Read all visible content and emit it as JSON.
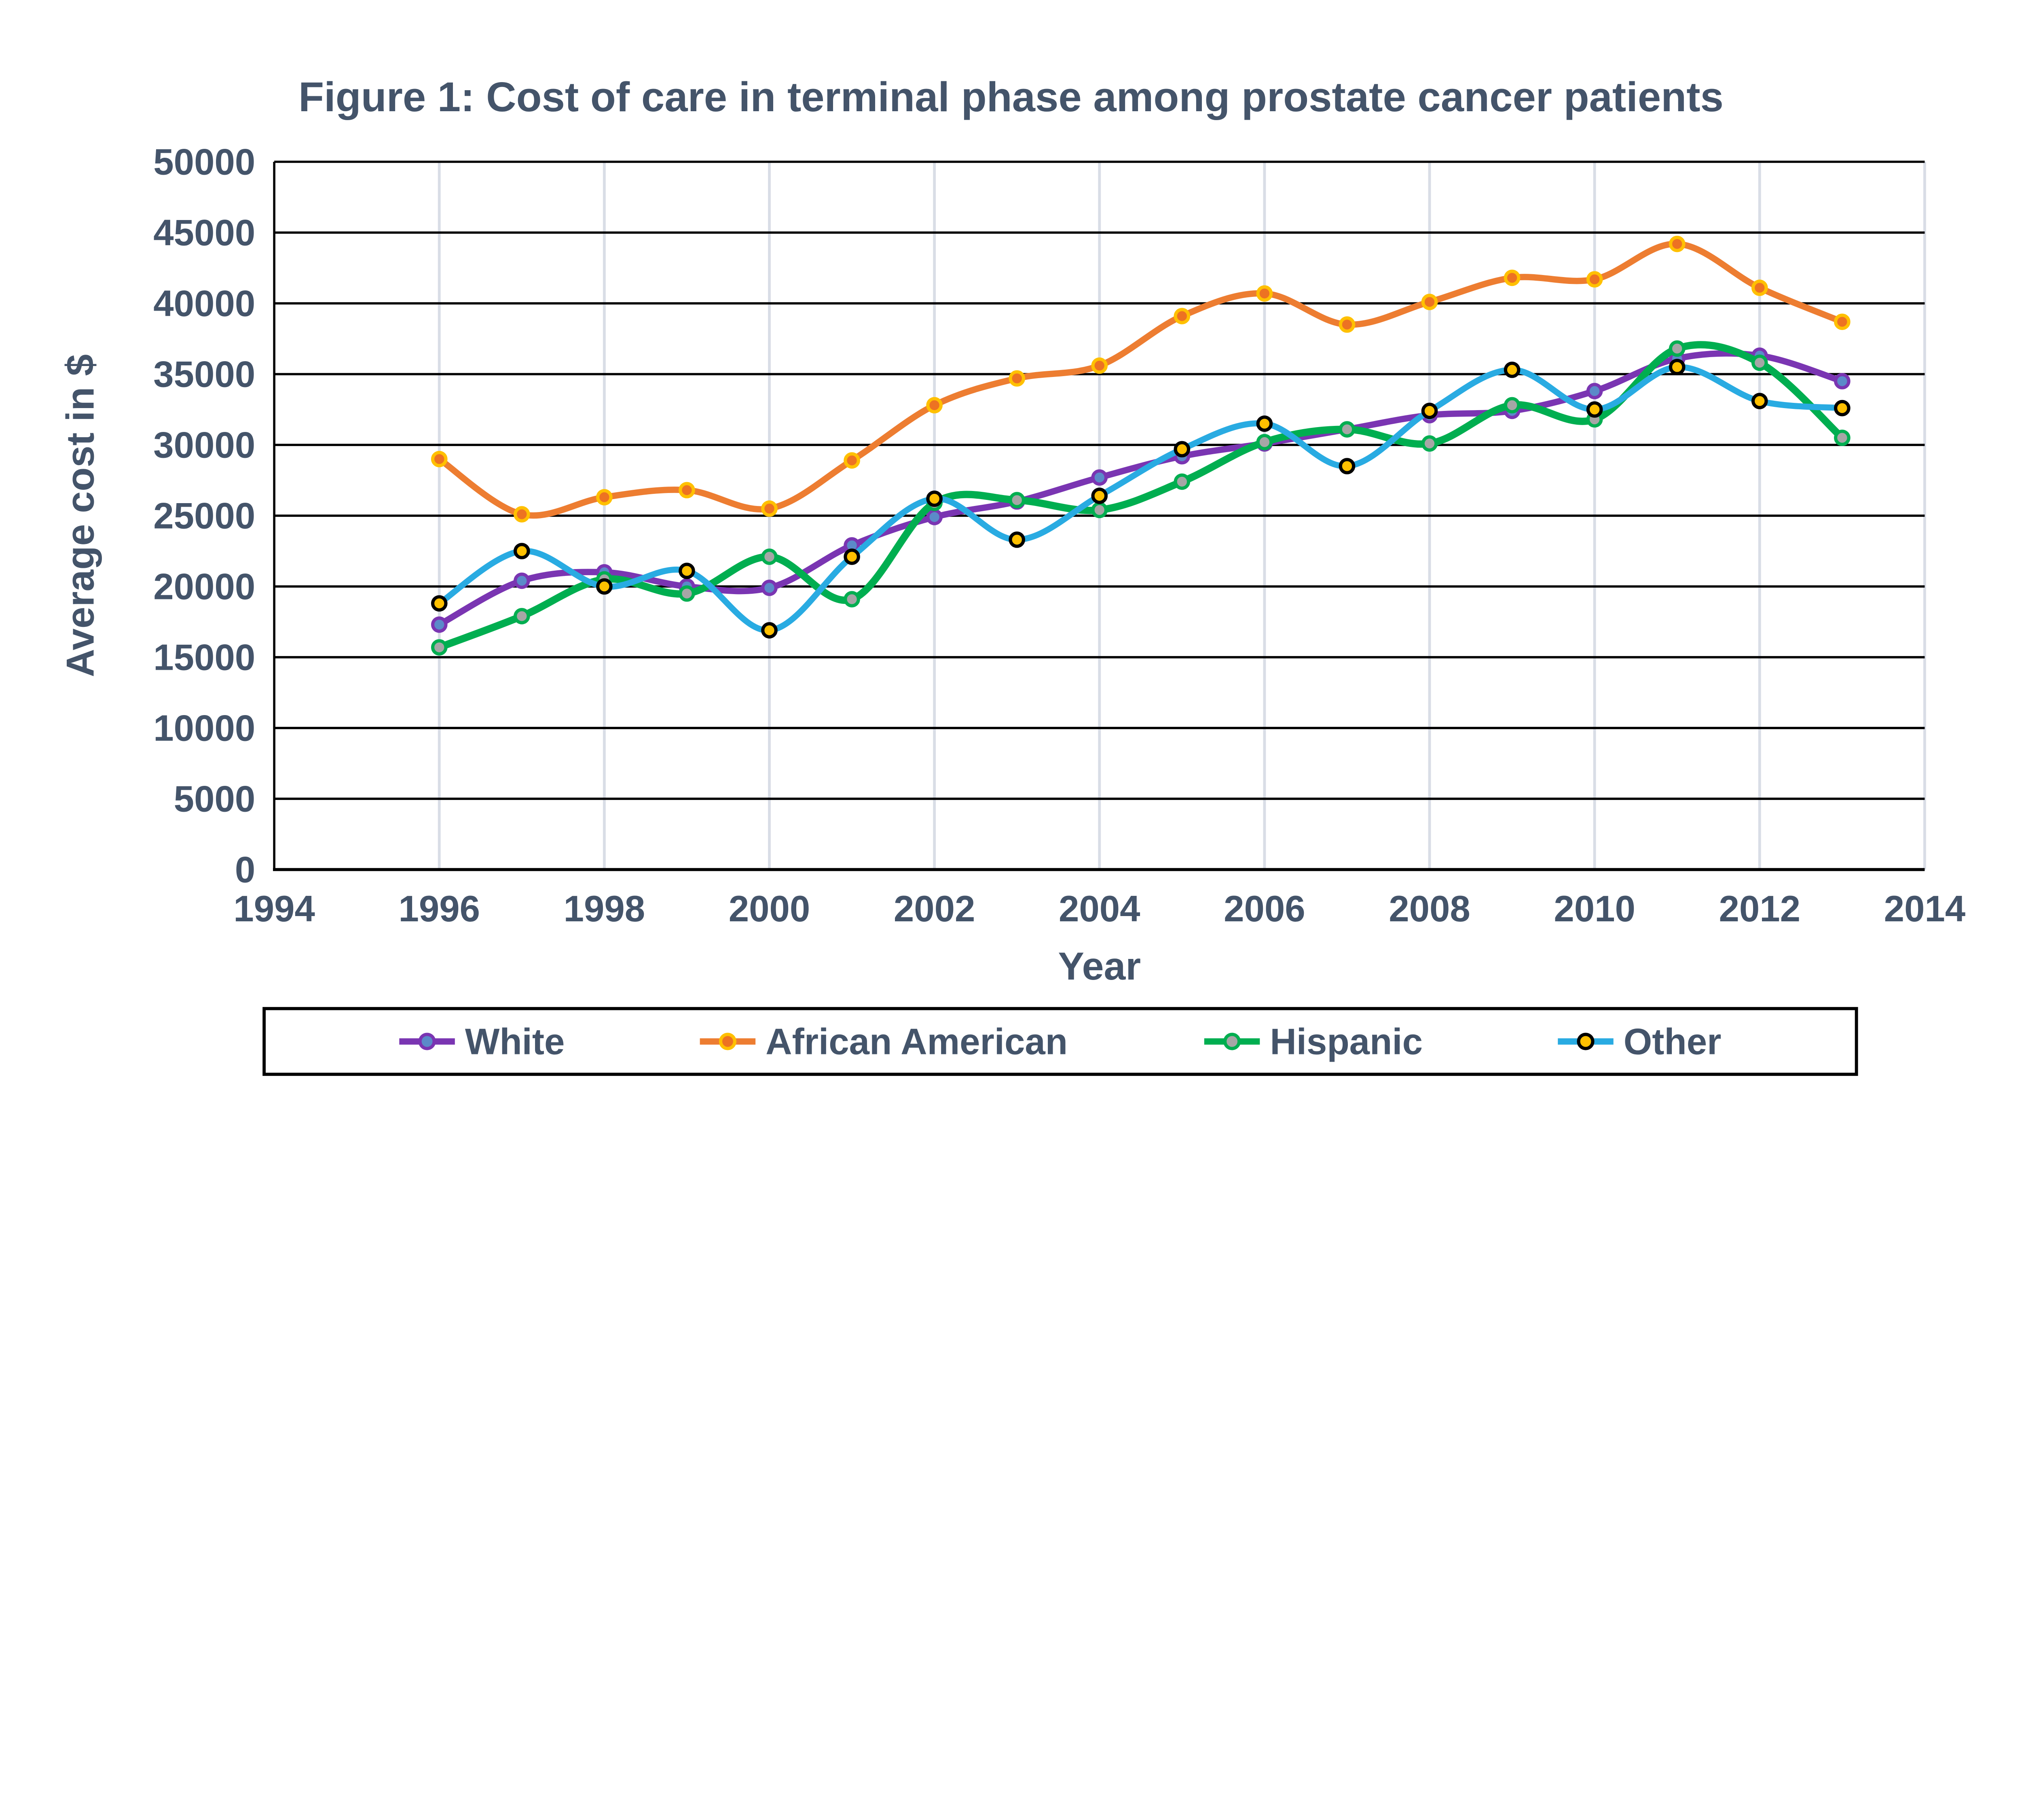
{
  "figure": {
    "background_color": "#FFFFFF",
    "text_color": "#44546A"
  },
  "chart_data": {
    "type": "line",
    "title": "Figure 1: Cost of care in terminal phase among prostate cancer patients",
    "xlabel": "Year",
    "ylabel": "Average cost in $",
    "x": [
      1996,
      1997,
      1998,
      1999,
      2000,
      2001,
      2002,
      2003,
      2004,
      2005,
      2006,
      2007,
      2008,
      2009,
      2010,
      2011,
      2012,
      2013
    ],
    "series": [
      {
        "name": "White",
        "line_color": "#7A35B2",
        "marker_fill": "#5B8AC9",
        "marker_stroke": "#7A35B2",
        "values": [
          17300,
          20400,
          21000,
          20000,
          19900,
          22900,
          24900,
          26000,
          27700,
          29200,
          30100,
          31100,
          32100,
          32400,
          33800,
          36100,
          36300,
          34500
        ]
      },
      {
        "name": "African American",
        "line_color": "#ED7D31",
        "marker_fill": "#ED7222",
        "marker_stroke": "#FFC000",
        "values": [
          29000,
          25100,
          26300,
          26800,
          25500,
          28900,
          32800,
          34700,
          35600,
          39100,
          40700,
          38500,
          40100,
          41800,
          41700,
          44200,
          41100,
          38700
        ]
      },
      {
        "name": "Hispanic",
        "line_color": "#00AE50",
        "marker_fill": "#A6A6A6",
        "marker_stroke": "#00AE50",
        "values": [
          15700,
          17900,
          20500,
          19500,
          22100,
          19100,
          25900,
          26100,
          25400,
          27400,
          30200,
          31100,
          30100,
          32800,
          31800,
          36800,
          35800,
          30500
        ]
      },
      {
        "name": "Other",
        "line_color": "#29ABE2",
        "marker_fill": "#FFC000",
        "marker_stroke": "#000000",
        "values": [
          18800,
          22500,
          20000,
          21100,
          16900,
          22100,
          26200,
          23300,
          26400,
          29700,
          31500,
          28500,
          32400,
          35300,
          32500,
          35500,
          33100,
          32600
        ]
      }
    ],
    "x_axis": {
      "min": 1994,
      "max": 2014,
      "tick_step": 2,
      "ticks": [
        1994,
        1996,
        1998,
        2000,
        2002,
        2004,
        2006,
        2008,
        2010,
        2012,
        2014
      ]
    },
    "y_axis": {
      "min": 0,
      "max": 50000,
      "tick_step": 5000,
      "ticks": [
        0,
        5000,
        10000,
        15000,
        20000,
        25000,
        30000,
        35000,
        40000,
        45000,
        50000
      ]
    },
    "grid": {
      "horizontal": true,
      "vertical": true,
      "horizontal_color": "#000000",
      "vertical_color": "#D9DDE6"
    },
    "legend": {
      "position": "bottom",
      "border_color": "#000000",
      "background": "#FFFFFF",
      "labels": [
        "White",
        "African American",
        "Hispanic",
        "Other"
      ]
    },
    "line_smoothing": true
  }
}
